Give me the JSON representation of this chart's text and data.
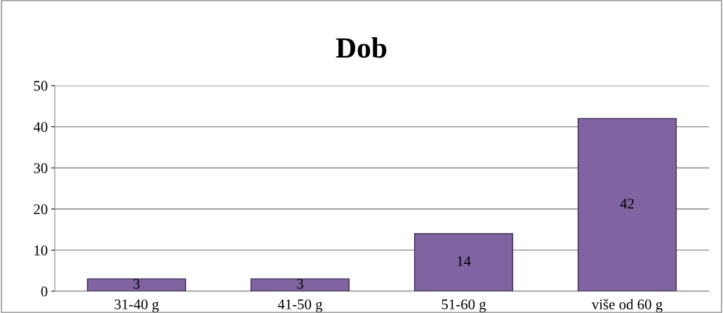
{
  "chart_data": {
    "type": "bar",
    "title": "Dob",
    "categories": [
      "31-40 g",
      "41-50 g",
      "51-60 g",
      "više od 60 g"
    ],
    "values": [
      3,
      3,
      14,
      42
    ],
    "color": "#8064a2",
    "ylim": [
      0,
      50
    ],
    "yticks": [
      0,
      10,
      20,
      30,
      40,
      50
    ],
    "grid": "y",
    "data_labels": true
  }
}
